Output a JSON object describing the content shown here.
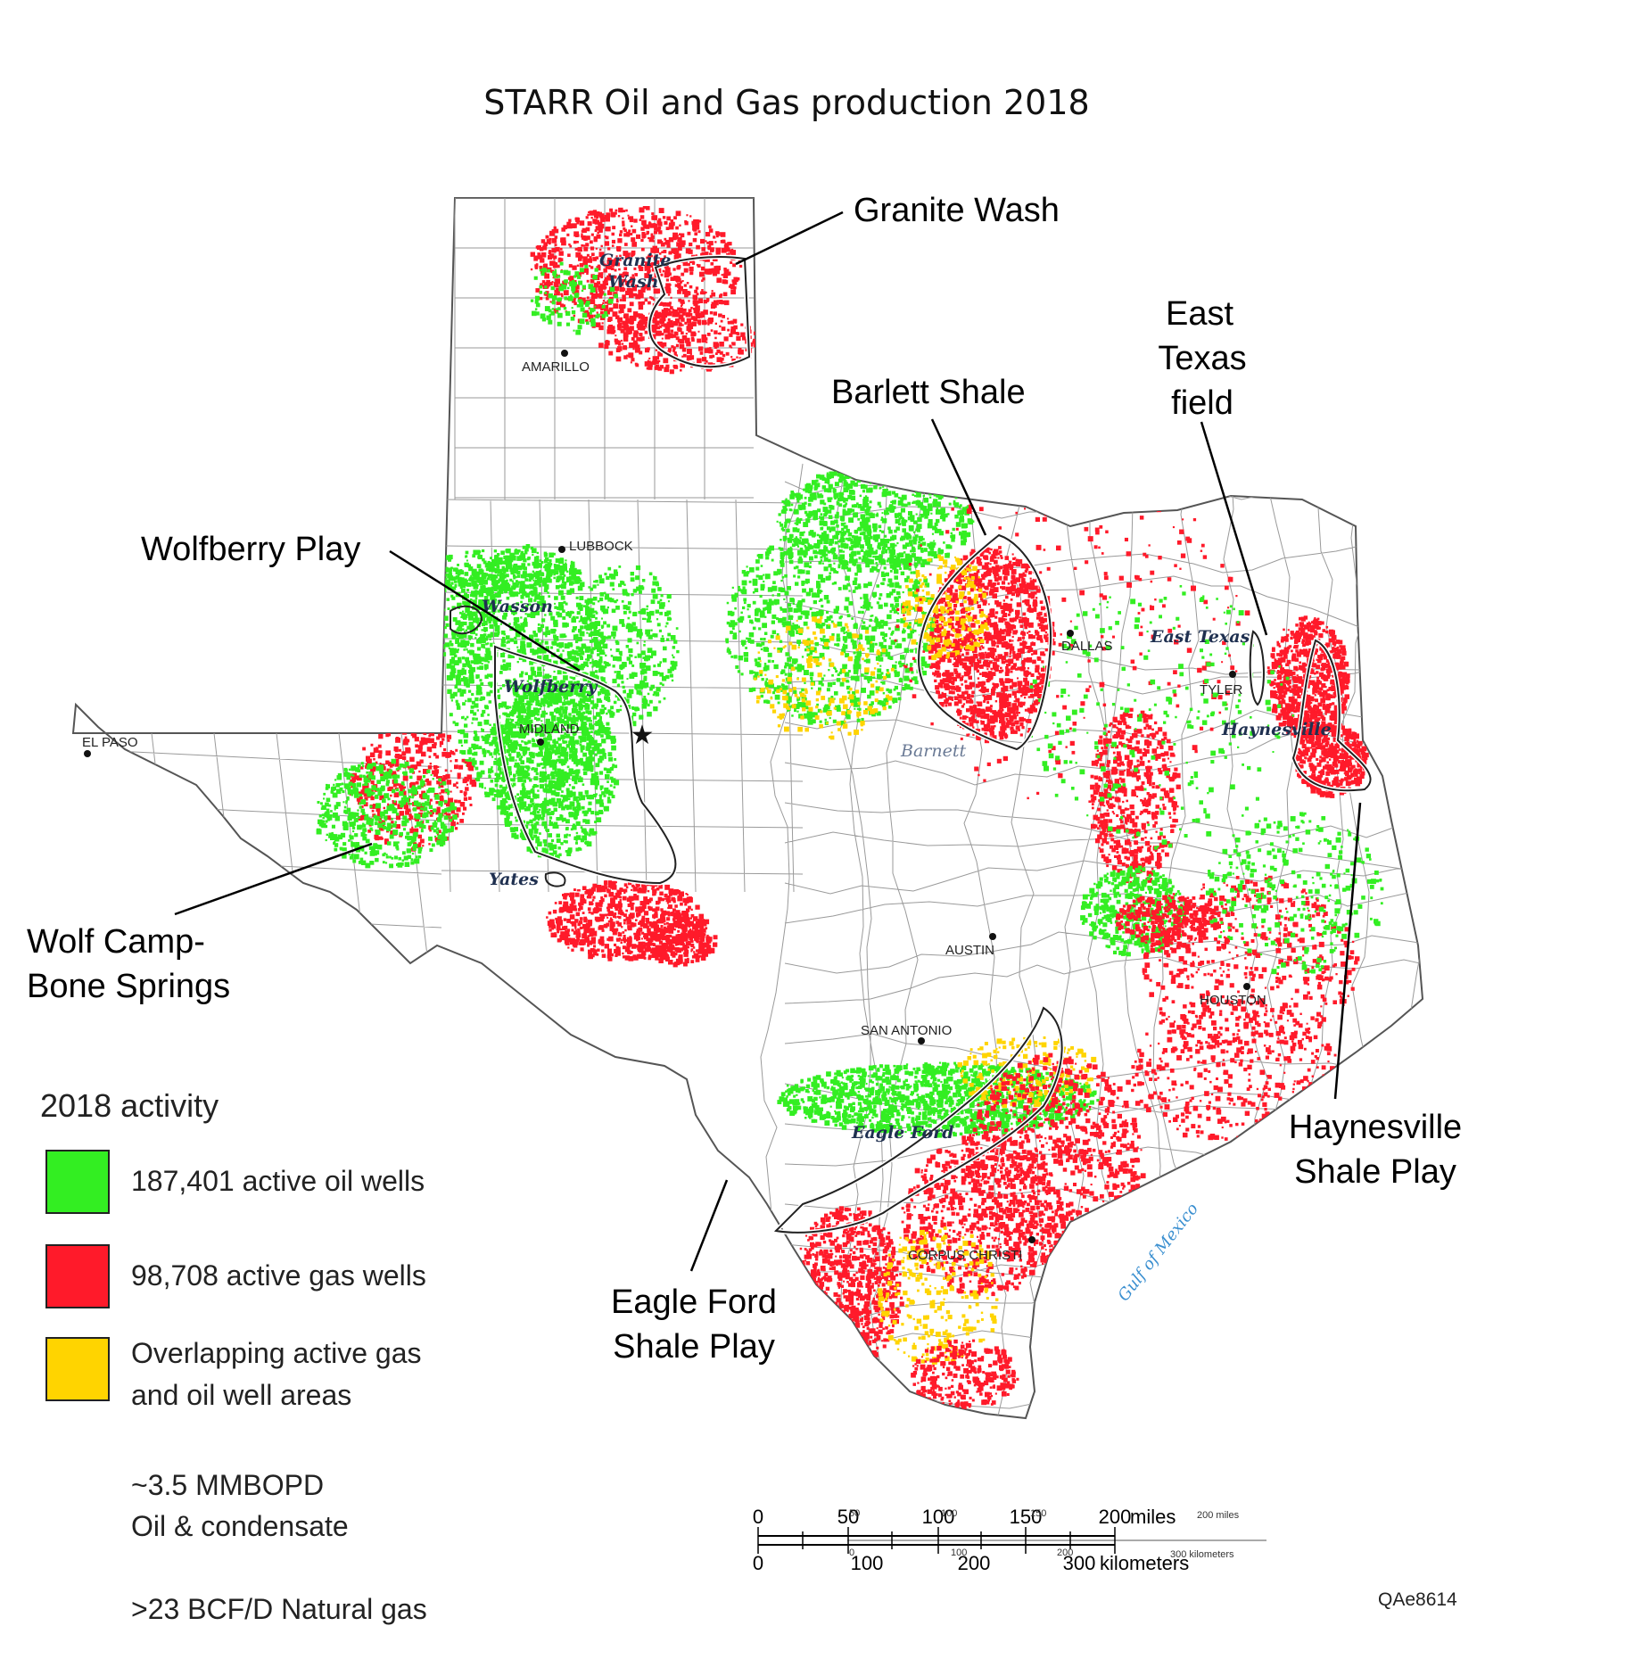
{
  "title": "STARR Oil and Gas production 2018",
  "colors": {
    "oil": "#33ee22",
    "gas": "#ff1a2a",
    "overlap": "#ffd400",
    "outline": "#555555",
    "play": "#222222"
  },
  "callouts": {
    "granite_wash": "Granite Wash",
    "barlett_shale": "Barlett Shale",
    "east_texas": [
      "East",
      "Texas",
      "field"
    ],
    "wolfberry": "Wolfberry Play",
    "wolfcamp": [
      "Wolf Camp-",
      "Bone Springs"
    ],
    "eagle_ford": [
      "Eagle Ford",
      "Shale Play"
    ],
    "haynesville": [
      "Haynesville",
      "Shale Play"
    ]
  },
  "cities": {
    "amarillo": "AMARILLO",
    "lubbock": "LUBBOCK",
    "midland": "MIDLAND",
    "el_paso": "EL PASO",
    "dallas": "DALLAS",
    "tyler": "TYLER",
    "austin": "AUSTIN",
    "san_antonio": "SAN ANTONIO",
    "houston": "HOUSTON",
    "corpus_christi": "CORPUS CHRISTI"
  },
  "fields": {
    "granite_wash": [
      "Granite",
      "Wash"
    ],
    "wasson": "Wasson",
    "wolfberry": "Wolfberry",
    "yates": "Yates",
    "east_texas": "East Texas",
    "haynesville": "Haynesville",
    "barnett": "Barnett",
    "eagle_ford": "Eagle Ford"
  },
  "gulf_label": "Gulf of Mexico",
  "legend": {
    "heading": "2018 activity",
    "items": [
      {
        "color": "oil",
        "lines": [
          "187,401 active oil wells"
        ]
      },
      {
        "color": "gas",
        "lines": [
          "98,708 active gas wells"
        ]
      },
      {
        "color": "overlap",
        "lines": [
          "Overlapping active gas",
          "and oil well areas"
        ]
      }
    ],
    "stats": [
      {
        "lines": [
          "~3.5 MMBOPD",
          "Oil & condensate"
        ]
      },
      {
        "lines": [
          ">23 BCF/D Natural gas"
        ]
      }
    ]
  },
  "scale_bar": {
    "miles_ticks": [
      "0",
      "50",
      "100",
      "150",
      "200"
    ],
    "miles_unit": "miles",
    "km_ticks": [
      "0",
      "100",
      "200",
      "300"
    ],
    "km_unit": "kilometers",
    "ghost_miles": [
      "50",
      "100",
      "150",
      "200 miles"
    ],
    "ghost_km": [
      "0",
      "100",
      "200",
      "300 kilometers"
    ]
  },
  "figure_id": "QAe8614"
}
